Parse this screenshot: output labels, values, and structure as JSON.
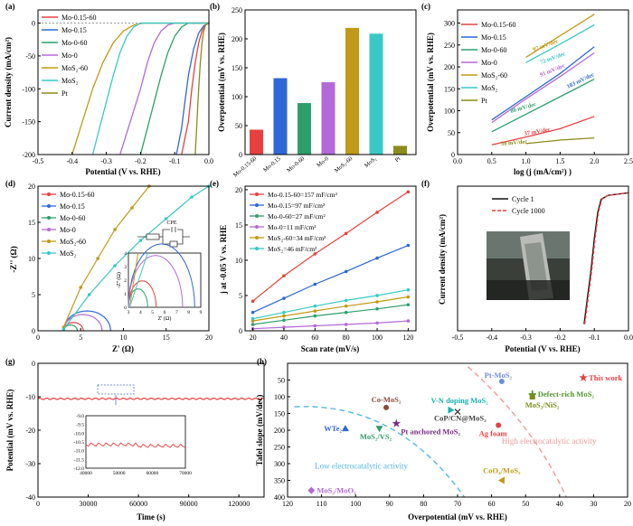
{
  "panels": {
    "a": {
      "label": "(a)",
      "xlabel": "Potential (V vs. RHE)",
      "ylabel": "Current density (mA/cm²)",
      "xticks": [
        "-0.5",
        "-0.4",
        "-0.3",
        "-0.2",
        "-0.1",
        "0.0"
      ],
      "yticks": [
        "0",
        "-50",
        "-100",
        "-150",
        "-200"
      ]
    },
    "b": {
      "label": "(b)",
      "ylabel": "Overpotential (mV vs. RHE)",
      "yticks": [
        "0",
        "50",
        "100",
        "150",
        "200",
        "250"
      ]
    },
    "c": {
      "label": "(c)",
      "xlabel": "log (j (mA/cm²) )",
      "ylabel": "Overpotential (mV vs. RHE)",
      "xticks": [
        "0.0",
        "0.5",
        "1.0",
        "1.5",
        "2.0",
        "2.5"
      ],
      "yticks": [
        "0",
        "50",
        "100",
        "150",
        "200",
        "250",
        "300"
      ]
    },
    "d": {
      "label": "(d)",
      "xlabel": "Z' (Ω)",
      "ylabel": "-Z'' (Ω)",
      "xticks": [
        "0",
        "5",
        "10",
        "15",
        "20"
      ],
      "yticks": [
        "0",
        "5",
        "10",
        "15",
        "20"
      ],
      "inset_xlabel": "Z' (Ω)",
      "inset_ylabel": "-Z'' (Ω)",
      "inset_xticks": [
        "3",
        "4",
        "5",
        "6",
        "7",
        "8",
        "9"
      ],
      "inset_yticks": [
        "0",
        "1",
        "2",
        "3",
        "4"
      ],
      "circuit_label": "CPE"
    },
    "e": {
      "label": "(e)",
      "xlabel": "Scan rate (mV/s)",
      "ylabel": "j at -0.05 V vs. RHE",
      "xticks": [
        "20",
        "40",
        "60",
        "80",
        "100",
        "120"
      ],
      "yticks": [
        "0",
        "5",
        "10",
        "15",
        "20"
      ]
    },
    "f": {
      "label": "(f)",
      "xlabel": "Potential (V vs. RHE)",
      "ylabel": "Current density (mA/cm²)",
      "xticks": [
        "-0.5",
        "-0.4",
        "-0.3",
        "-0.2",
        "-0.1",
        "0.0"
      ]
    },
    "g": {
      "label": "(g)",
      "xlabel": "Time (s)",
      "ylabel": "Potential (mV vs. RHE)",
      "xticks": [
        "0",
        "30000",
        "60000",
        "90000",
        "120000"
      ],
      "yticks": [
        "0",
        "-10",
        "-20",
        "-30",
        "-40"
      ],
      "inset_xticks": [
        "40000",
        "50000",
        "60000",
        "70000"
      ],
      "inset_yticks": [
        "-9.0",
        "-9.5",
        "-10.0",
        "-10.5",
        "-11.0",
        "-11.5",
        "-12.0"
      ]
    },
    "h": {
      "label": "(h)",
      "xlabel": "Overpotential (mV vs. RHE)",
      "ylabel": "Tafel slope (mV/dec)",
      "xticks": [
        "120",
        "110",
        "100",
        "90",
        "80",
        "70",
        "60",
        "50",
        "40",
        "30",
        "20"
      ],
      "yticks": [
        "50",
        "100",
        "150",
        "200",
        "250",
        "300",
        "350",
        "400"
      ],
      "zone_low": "Low electrocatalytic activity",
      "zone_high": "High electrocatalytic activity"
    }
  },
  "colors": {
    "Mo-0.15-60": "#e8403f",
    "Mo-0.15": "#2f67d8",
    "Mo-0-60": "#2e9f6b",
    "Mo-0": "#b36ad8",
    "MoS2-60": "#c09a16",
    "MoS2": "#38c9c4",
    "Pt": "#8c8c1c",
    "cycle1": "#111111",
    "cycle1000": "#e8403f"
  },
  "chart_data": [
    {
      "panel": "a",
      "type": "line",
      "xlim": [
        -0.5,
        0
      ],
      "ylim": [
        -200,
        20
      ],
      "series": [
        {
          "name": "Mo-0.15-60",
          "x": [
            -0.08,
            -0.06,
            -0.05,
            -0.04,
            -0.03,
            -0.02,
            -0.01,
            0
          ],
          "y": [
            -200,
            -150,
            -100,
            -60,
            -30,
            -12,
            -3,
            0
          ]
        },
        {
          "name": "Mo-0.15",
          "x": [
            -0.095,
            -0.08,
            -0.07,
            -0.06,
            -0.045,
            -0.03,
            -0.015,
            0
          ],
          "y": [
            -200,
            -160,
            -120,
            -80,
            -40,
            -15,
            -4,
            0
          ]
        },
        {
          "name": "Mo-0-60",
          "x": [
            -0.2,
            -0.18,
            -0.16,
            -0.14,
            -0.12,
            -0.1,
            -0.08,
            -0.06
          ],
          "y": [
            -200,
            -160,
            -120,
            -80,
            -45,
            -20,
            -6,
            0
          ]
        },
        {
          "name": "Mo-0",
          "x": [
            -0.26,
            -0.23,
            -0.2,
            -0.18,
            -0.16,
            -0.14,
            -0.12,
            -0.1
          ],
          "y": [
            -200,
            -150,
            -100,
            -60,
            -30,
            -12,
            -3,
            0
          ]
        },
        {
          "name": "MoS2-60",
          "x": [
            -0.4,
            -0.37,
            -0.34,
            -0.31,
            -0.28,
            -0.25,
            -0.22,
            -0.19
          ],
          "y": [
            -200,
            -150,
            -100,
            -60,
            -30,
            -12,
            -3,
            0
          ]
        },
        {
          "name": "MoS2",
          "x": [
            -0.34,
            -0.32,
            -0.3,
            -0.28,
            -0.26,
            -0.24,
            -0.22,
            -0.2
          ],
          "y": [
            -200,
            -160,
            -120,
            -80,
            -45,
            -20,
            -6,
            0
          ]
        },
        {
          "name": "Pt",
          "x": [
            -0.04,
            -0.035,
            -0.03,
            -0.025,
            -0.02,
            -0.015,
            -0.01,
            0
          ],
          "y": [
            -200,
            -150,
            -100,
            -60,
            -30,
            -12,
            -3,
            0
          ]
        }
      ]
    },
    {
      "panel": "b",
      "type": "bar",
      "ylim": [
        0,
        250
      ],
      "categories": [
        "Mo-0.15-60",
        "Mo-0.15",
        "Mo-0-60",
        "Mo-0",
        "MoS2-60",
        "MoS2",
        "Pt"
      ],
      "category_labels": [
        "Mo-0.15-60",
        "Mo-0.15",
        "Mo-0-60",
        "Mo-0",
        "MoS₂-60",
        "MoS₂",
        "Pt"
      ],
      "values": [
        43,
        132,
        89,
        125,
        219,
        209,
        15
      ]
    },
    {
      "panel": "c",
      "type": "line",
      "xlim": [
        0,
        2.5
      ],
      "ylim": [
        0,
        330
      ],
      "series": [
        {
          "name": "Mo-0.15-60",
          "x": [
            0.5,
            1.0,
            1.5,
            2.0
          ],
          "y": [
            22,
            40,
            59,
            87
          ]
        },
        {
          "name": "Mo-0.15",
          "x": [
            0.5,
            1.0,
            1.5,
            2.0
          ],
          "y": [
            79,
            132,
            185,
            246
          ]
        },
        {
          "name": "Mo-0-60",
          "x": [
            0.5,
            1.0,
            1.5,
            2.0
          ],
          "y": [
            52,
            92,
            132,
            172
          ]
        },
        {
          "name": "Mo-0",
          "x": [
            0.5,
            1.0,
            1.5,
            2.0
          ],
          "y": [
            73,
            127,
            178,
            232
          ]
        },
        {
          "name": "MoS2-60",
          "x": [
            1.0,
            1.5,
            2.0
          ],
          "y": [
            222,
            271,
            320
          ]
        },
        {
          "name": "MoS2",
          "x": [
            1.0,
            1.5,
            2.0
          ],
          "y": [
            210,
            252,
            296
          ]
        },
        {
          "name": "Pt",
          "x": [
            1.0,
            1.5,
            2.0
          ],
          "y": [
            25,
            33,
            38
          ]
        }
      ],
      "annotations": [
        "97 mV/dec",
        "72 mV/dec",
        "91 mV/dec",
        "103 mV/dec",
        "80 mV/dec",
        "37 mV/dec",
        "30 mV/dec"
      ]
    },
    {
      "panel": "d",
      "type": "scatter",
      "xlim": [
        0,
        20
      ],
      "ylim": [
        0,
        20
      ],
      "series": [
        {
          "name": "Mo-0.15-60",
          "arc": [
            3,
            5.3,
            1.1
          ]
        },
        {
          "name": "Mo-0.15",
          "arc": [
            3,
            8.5,
            2.2
          ]
        },
        {
          "name": "Mo-0-60",
          "arc": [
            3,
            4.6,
            0.8
          ]
        },
        {
          "name": "Mo-0",
          "arc": [
            3,
            7.5,
            1.7
          ]
        },
        {
          "name": "MoS2-60",
          "x": [
            3,
            5,
            7,
            9,
            11,
            13
          ],
          "y": [
            0.5,
            6,
            10,
            14,
            17,
            20
          ]
        },
        {
          "name": "MoS2",
          "x": [
            3,
            6,
            9,
            12,
            15,
            18,
            20
          ],
          "y": [
            0.2,
            5,
            9,
            12.5,
            15.5,
            18.5,
            20
          ]
        }
      ]
    },
    {
      "panel": "e",
      "type": "line",
      "xlim": [
        20,
        120
      ],
      "ylim": [
        0,
        20
      ],
      "series": [
        {
          "name": "Mo-0.15-60=157 mF/cm²",
          "x": [
            20,
            40,
            60,
            80,
            100,
            120
          ],
          "y": [
            4.2,
            7.8,
            10.9,
            13.8,
            16.8,
            19.7
          ]
        },
        {
          "name": "Mo-0.15=97 mF/cm²",
          "x": [
            20,
            40,
            60,
            80,
            100,
            120
          ],
          "y": [
            2.6,
            4.6,
            6.6,
            8.4,
            10.3,
            12.1
          ]
        },
        {
          "name": "Mo-0-60=27 mF/cm²",
          "x": [
            20,
            40,
            60,
            80,
            100,
            120
          ],
          "y": [
            0.9,
            1.5,
            2.1,
            2.6,
            3.1,
            3.7
          ]
        },
        {
          "name": "Mo-0=11 mF/cm²",
          "x": [
            20,
            40,
            60,
            80,
            100,
            120
          ],
          "y": [
            0.3,
            0.5,
            0.7,
            0.9,
            1.1,
            1.4
          ]
        },
        {
          "name": "MoS2-60=34 mF/cm²",
          "x": [
            20,
            40,
            60,
            80,
            100,
            120
          ],
          "y": [
            1.4,
            2.1,
            2.8,
            3.5,
            4.1,
            4.8
          ]
        },
        {
          "name": "MoS2=46 mF/cm²",
          "x": [
            20,
            40,
            60,
            80,
            100,
            120
          ],
          "y": [
            1.7,
            2.6,
            3.5,
            4.3,
            5.0,
            5.8
          ]
        }
      ]
    },
    {
      "panel": "f",
      "type": "line",
      "xlim": [
        -0.5,
        0
      ],
      "series": [
        {
          "name": "Cycle 1",
          "x": [
            -0.13,
            -0.12,
            -0.11,
            -0.1,
            -0.09,
            -0.08,
            -0.06,
            -0.03,
            0
          ],
          "y": [
            -200,
            -160,
            -120,
            -70,
            -30,
            -10,
            -4,
            -2,
            0
          ]
        },
        {
          "name": "Cycle 1000",
          "x": [
            -0.128,
            -0.118,
            -0.108,
            -0.098,
            -0.088,
            -0.078,
            -0.06,
            -0.03,
            0
          ],
          "y": [
            -200,
            -160,
            -120,
            -70,
            -30,
            -10,
            -4,
            -2,
            0
          ]
        }
      ]
    },
    {
      "panel": "g",
      "type": "line",
      "xlim": [
        0,
        135000
      ],
      "ylim": [
        -40,
        0
      ],
      "series": [
        {
          "name": "Mo-0.15-60",
          "x": [
            0,
            30000,
            60000,
            90000,
            120000,
            135000
          ],
          "y": [
            -10.8,
            -10.6,
            -10.7,
            -10.6,
            -10.5,
            -10.6
          ]
        }
      ]
    },
    {
      "panel": "h",
      "type": "scatter",
      "xlim": [
        120,
        20
      ],
      "ylim": [
        400,
        0
      ],
      "points": [
        {
          "label": "This work",
          "x": 33,
          "y": 43,
          "marker": "star",
          "color": "#e8403f"
        },
        {
          "label": "Pt-MoS₂",
          "x": 57,
          "y": 54,
          "marker": "circle",
          "color": "#6c8ed8"
        },
        {
          "label": "Defect-rich MoS₂",
          "x": 48,
          "y": 92,
          "marker": "plus",
          "color": "#4c9a2a"
        },
        {
          "label": "MoS₂/NiS₂",
          "x": 48,
          "y": 100,
          "marker": "square",
          "color": "#7a8c1c"
        },
        {
          "label": "Co-MoS₂",
          "x": 91,
          "y": 132,
          "marker": "circle",
          "color": "#8c4a3a"
        },
        {
          "label": "V-N doping MoS₂",
          "x": 72,
          "y": 140,
          "marker": "triangle-right",
          "color": "#18b0b0"
        },
        {
          "label": "CoP/CN@MoS₂",
          "x": 70,
          "y": 145,
          "marker": "x",
          "color": "#444444"
        },
        {
          "label": "Ag foam",
          "x": 58,
          "y": 185,
          "marker": "circle",
          "color": "#e8403f"
        },
        {
          "label": "WTe₂",
          "x": 103,
          "y": 195,
          "marker": "triangle",
          "color": "#2f67d8"
        },
        {
          "label": "MoS₂/VS₂",
          "x": 93,
          "y": 195,
          "marker": "triangle-down",
          "color": "#2e9f6b"
        },
        {
          "label": "Pt anchored MoS₂",
          "x": 88,
          "y": 180,
          "marker": "star",
          "color": "#7a2a8c"
        },
        {
          "label": "CoO₄/MoS₂",
          "x": 57,
          "y": 350,
          "marker": "triangle-left",
          "color": "#c09a16"
        },
        {
          "label": "MoS₂/MoO₂",
          "x": 113,
          "y": 380,
          "marker": "diamond",
          "color": "#b36ad8"
        }
      ]
    }
  ]
}
